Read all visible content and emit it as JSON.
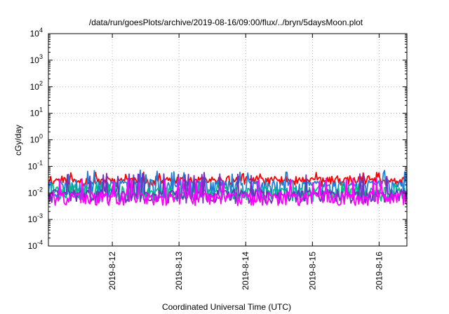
{
  "chart_data": {
    "type": "line",
    "title": "/data/run/goesPlots/archive/2019-08-16/09:00/flux/../bryn/5daysMoon.plot",
    "xlabel": "Coordinated Universal Time (UTC)",
    "ylabel": "cGy/day",
    "y_scale": "log",
    "ylim": [
      0.0001,
      10000
    ],
    "y_ticks": [
      {
        "value": 0.0001,
        "base": "10",
        "exp": "-4"
      },
      {
        "value": 0.001,
        "base": "10",
        "exp": "-3"
      },
      {
        "value": 0.01,
        "base": "10",
        "exp": "-2"
      },
      {
        "value": 0.1,
        "base": "10",
        "exp": "-1"
      },
      {
        "value": 1,
        "base": "10",
        "exp": "0"
      },
      {
        "value": 10,
        "base": "10",
        "exp": "1"
      },
      {
        "value": 100,
        "base": "10",
        "exp": "2"
      },
      {
        "value": 1000,
        "base": "10",
        "exp": "3"
      },
      {
        "value": 10000,
        "base": "10",
        "exp": "4"
      }
    ],
    "xlim": [
      "2019-08-11 01:00",
      "2019-08-16 10:00"
    ],
    "x_ticks": [
      {
        "value": "2019-08-12 00:00",
        "label": "2019-8-12"
      },
      {
        "value": "2019-08-13 00:00",
        "label": "2019-8-13"
      },
      {
        "value": "2019-08-14 00:00",
        "label": "2019-8-14"
      },
      {
        "value": "2019-08-15 00:00",
        "label": "2019-8-15"
      },
      {
        "value": "2019-08-16 00:00",
        "label": "2019-8-16"
      }
    ],
    "grid": true,
    "series": [
      {
        "color": "#ff0000",
        "base": 0.035,
        "dip": 0.022,
        "spike": 0.05,
        "seed": 11
      },
      {
        "color": "#1f7fd8",
        "base": 0.025,
        "dip": 0.008,
        "spike": 0.06,
        "seed": 23
      },
      {
        "color": "#00c080",
        "base": 0.014,
        "dip": 0.006,
        "spike": 0.02,
        "seed": 37
      },
      {
        "color": "#7030c0",
        "base": 0.011,
        "dip": 0.005,
        "spike": 0.05,
        "seed": 41
      },
      {
        "color": "#ff00ff",
        "base": 0.009,
        "dip": 0.0042,
        "spike": 0.03,
        "seed": 59
      }
    ]
  }
}
